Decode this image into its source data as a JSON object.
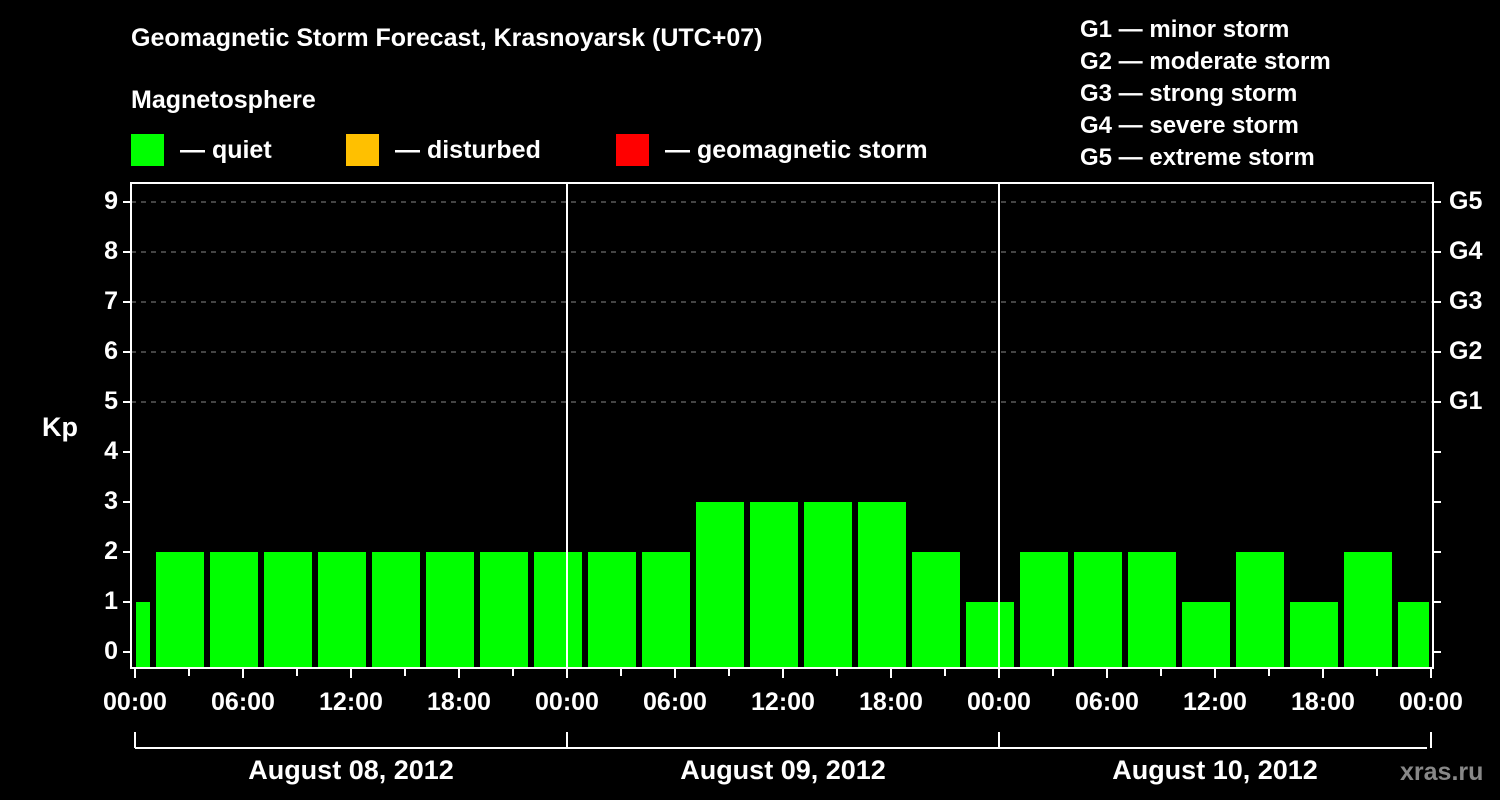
{
  "header": {
    "title": "Geomagnetic Storm Forecast, Krasnoyarsk (UTC+07)",
    "subtitle": "Magnetosphere"
  },
  "legend": {
    "items": [
      {
        "label": "— quiet",
        "color": "#00ff00"
      },
      {
        "label": "— disturbed",
        "color": "#ffc000"
      },
      {
        "label": "— geomagnetic storm",
        "color": "#ff0000"
      }
    ]
  },
  "g_scale": {
    "items": [
      "G1 — minor storm",
      "G2 — moderate storm",
      "G3 — strong storm",
      "G4 — severe storm",
      "G5 — extreme storm"
    ]
  },
  "axes": {
    "ylabel": "Kp",
    "yticks": [
      "0",
      "1",
      "2",
      "3",
      "4",
      "5",
      "6",
      "7",
      "8",
      "9"
    ],
    "gticks": [
      {
        "label": "G1",
        "kp": 5
      },
      {
        "label": "G2",
        "kp": 6
      },
      {
        "label": "G3",
        "kp": 7
      },
      {
        "label": "G4",
        "kp": 8
      },
      {
        "label": "G5",
        "kp": 9
      }
    ],
    "xticks": [
      "00:00",
      "06:00",
      "12:00",
      "18:00",
      "00:00",
      "06:00",
      "12:00",
      "18:00",
      "00:00",
      "06:00",
      "12:00",
      "18:00",
      "00:00"
    ],
    "days": [
      "August 08, 2012",
      "August 09, 2012",
      "August 10, 2012"
    ]
  },
  "watermark": "xras.ru",
  "chart_data": {
    "type": "bar",
    "title": "Geomagnetic Storm Forecast, Krasnoyarsk (UTC+07)",
    "subtitle": "Magnetosphere",
    "xlabel": "",
    "ylabel": "Kp",
    "ylim": [
      0,
      9
    ],
    "grid": "dashed horizontal at Kp 5-9",
    "secondary_y_labels": {
      "5": "G1",
      "6": "G2",
      "7": "G3",
      "8": "G4",
      "9": "G5"
    },
    "bar_interval_hours": 3,
    "bar_start_offset_hours": 1,
    "categories": [
      "Aug 08 ~22:00(prev)-01:00",
      "Aug 08 01:00-04:00",
      "Aug 08 04:00-07:00",
      "Aug 08 07:00-10:00",
      "Aug 08 10:00-13:00",
      "Aug 08 13:00-16:00",
      "Aug 08 16:00-19:00",
      "Aug 08 19:00-22:00",
      "Aug 08 22:00-Aug 09 01:00",
      "Aug 09 01:00-04:00",
      "Aug 09 04:00-07:00",
      "Aug 09 07:00-10:00",
      "Aug 09 10:00-13:00",
      "Aug 09 13:00-16:00",
      "Aug 09 16:00-19:00",
      "Aug 09 19:00-22:00",
      "Aug 09 22:00-Aug 10 01:00",
      "Aug 10 01:00-04:00",
      "Aug 10 04:00-07:00",
      "Aug 10 07:00-10:00",
      "Aug 10 10:00-13:00",
      "Aug 10 13:00-16:00",
      "Aug 10 16:00-19:00",
      "Aug 10 19:00-22:00",
      "Aug 10 22:00-Aug 11 01:00"
    ],
    "values": [
      1,
      2,
      2,
      2,
      2,
      2,
      2,
      2,
      2,
      2,
      2,
      3,
      3,
      3,
      3,
      2,
      1,
      2,
      2,
      2,
      1,
      2,
      1,
      2,
      1
    ],
    "colors": {
      "quiet": "#00ff00",
      "disturbed": "#ffc000",
      "storm": "#ff0000"
    },
    "legend": [
      "quiet",
      "disturbed",
      "geomagnetic storm"
    ],
    "x_tick_labels": [
      "00:00",
      "06:00",
      "12:00",
      "18:00",
      "00:00",
      "06:00",
      "12:00",
      "18:00",
      "00:00",
      "06:00",
      "12:00",
      "18:00",
      "00:00"
    ],
    "day_labels": [
      "August 08, 2012",
      "August 09, 2012",
      "August 10, 2012"
    ]
  }
}
